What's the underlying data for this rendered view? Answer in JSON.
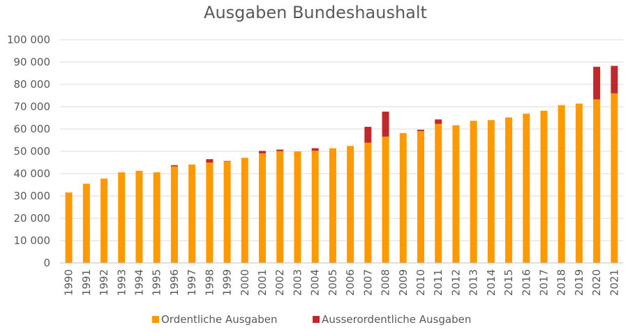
{
  "chart_data": {
    "type": "bar",
    "stacked": true,
    "title": "Ausgaben Bundeshaushalt",
    "xlabel": "",
    "ylabel": "",
    "ylim": [
      0,
      100000
    ],
    "yticks": [
      "0",
      "10 000",
      "20 000",
      "30 000",
      "40 000",
      "50 000",
      "60 000",
      "70 000",
      "80 000",
      "90 000",
      "100 000"
    ],
    "ytick_values": [
      0,
      10000,
      20000,
      30000,
      40000,
      50000,
      60000,
      70000,
      80000,
      90000,
      100000
    ],
    "grid": true,
    "legend_position": "bottom",
    "categories": [
      "1990",
      "1991",
      "1992",
      "1993",
      "1994",
      "1995",
      "1996",
      "1997",
      "1998",
      "1999",
      "2000",
      "2001",
      "2002",
      "2003",
      "2004",
      "2005",
      "2006",
      "2007",
      "2008",
      "2009",
      "2010",
      "2011",
      "2012",
      "2013",
      "2014",
      "2015",
      "2016",
      "2017",
      "2018",
      "2019",
      "2020",
      "2021"
    ],
    "series": [
      {
        "name": "Ordentliche Ausgaben",
        "color": "#FF9900",
        "values": [
          31600,
          35500,
          37800,
          40600,
          41300,
          40600,
          43300,
          44100,
          45000,
          45500,
          47100,
          49100,
          50100,
          50000,
          50300,
          51400,
          52400,
          53900,
          56600,
          58200,
          59100,
          62300,
          61700,
          63700,
          64000,
          65200,
          66900,
          68200,
          70700,
          71400,
          73300,
          76000
        ]
      },
      {
        "name": "Ausserordentliche Ausgaben",
        "color": "#C0282B",
        "values": [
          0,
          0,
          0,
          0,
          0,
          0,
          500,
          0,
          1500,
          200,
          0,
          1100,
          700,
          0,
          1100,
          0,
          0,
          7100,
          11200,
          0,
          600,
          2000,
          0,
          0,
          0,
          0,
          0,
          0,
          0,
          0,
          14600,
          12300
        ]
      }
    ]
  }
}
